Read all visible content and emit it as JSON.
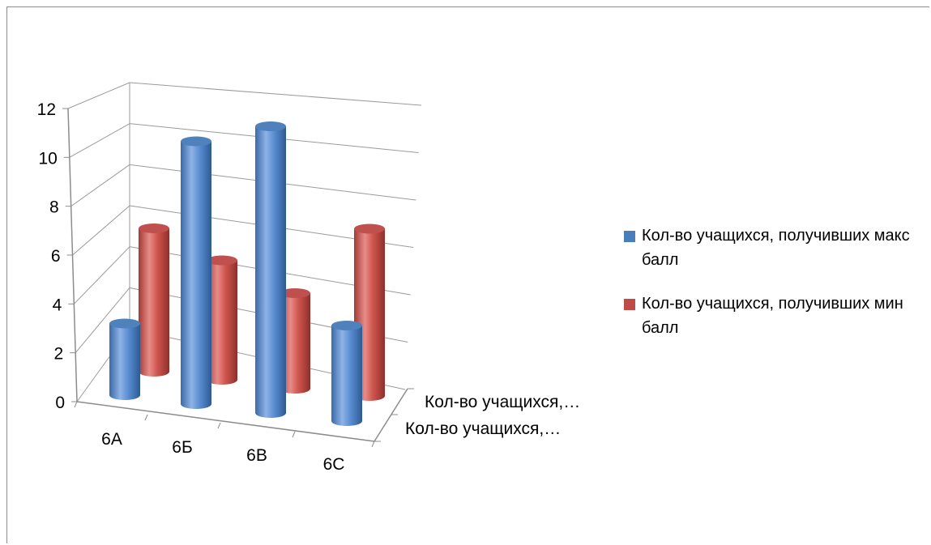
{
  "chart_data": {
    "type": "bar",
    "subtype": "3d-cylinder",
    "title": "",
    "categories": [
      "6А",
      "6Б",
      "6В",
      "6С"
    ],
    "series": [
      {
        "name": "Кол-во учащихся, получивших макс балл",
        "color": "#4a7ebb",
        "values": [
          3,
          11,
          12,
          4
        ]
      },
      {
        "name": "Кол-во учащихся, получивших мин балл",
        "color": "#be4b48",
        "values": [
          6,
          5,
          4,
          7
        ]
      }
    ],
    "depth_labels": [
      "Кол-во учащихся,…",
      "Кол-во учащихся,…"
    ],
    "y_ticks": [
      0,
      2,
      4,
      6,
      8,
      10,
      12
    ],
    "ylim": [
      0,
      12
    ],
    "grid": true,
    "legend_position": "right"
  }
}
